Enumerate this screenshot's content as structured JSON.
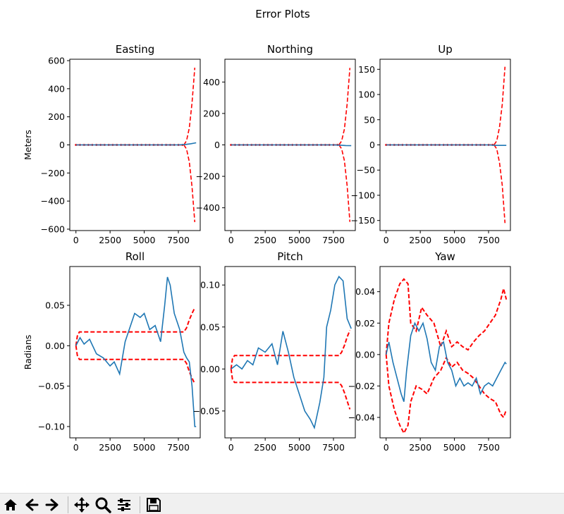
{
  "figure_title": "Error Plots",
  "colors": {
    "estimate": "#1f77b4",
    "bound": "#ff0000",
    "axes": "#000000",
    "toolbar_bg": "#f0f0f0"
  },
  "toolbar": {
    "buttons": [
      {
        "name": "home-icon",
        "label": "Home"
      },
      {
        "name": "back-arrow-icon",
        "label": "Back"
      },
      {
        "name": "forward-arrow-icon",
        "label": "Forward"
      },
      {
        "name": "pan-move-icon",
        "label": "Pan"
      },
      {
        "name": "zoom-magnifier-icon",
        "label": "Zoom"
      },
      {
        "name": "configure-subplots-icon",
        "label": "Subplots"
      },
      {
        "name": "save-floppy-icon",
        "label": "Save"
      }
    ]
  },
  "chart_data": [
    {
      "type": "line",
      "title": "Easting",
      "ylabel": "Meters",
      "xlim": [
        -450,
        9100
      ],
      "ylim": [
        -610,
        610
      ],
      "xticks": [
        0,
        2500,
        5000,
        7500
      ],
      "xtick_labels": [
        "0",
        "2500",
        "5000",
        "7500"
      ],
      "yticks": [
        -600,
        -400,
        -200,
        0,
        200,
        400,
        600
      ],
      "ytick_labels": [
        "−600",
        "−400",
        "−200",
        "0",
        "200",
        "400",
        "600"
      ],
      "estimate": {
        "x": [
          0,
          7500,
          8000,
          8400,
          8800
        ],
        "y": [
          0,
          0,
          3,
          8,
          15
        ]
      },
      "bound_upper": {
        "x": [
          0,
          7900,
          8100,
          8300,
          8500,
          8700
        ],
        "y": [
          0,
          0,
          30,
          120,
          300,
          550
        ]
      },
      "bound_lower": {
        "x": [
          0,
          7900,
          8100,
          8300,
          8500,
          8700
        ],
        "y": [
          0,
          0,
          -30,
          -120,
          -300,
          -550
        ]
      },
      "bound_markers": true
    },
    {
      "type": "line",
      "title": "Northing",
      "ylabel": "",
      "xlim": [
        -450,
        9100
      ],
      "ylim": [
        -545,
        545
      ],
      "xticks": [
        0,
        2500,
        5000,
        7500
      ],
      "xtick_labels": [
        "0",
        "2500",
        "5000",
        "7500"
      ],
      "yticks": [
        -400,
        -200,
        0,
        200,
        400
      ],
      "ytick_labels": [
        "−400",
        "−200",
        "0",
        "200",
        "400"
      ],
      "estimate": {
        "x": [
          0,
          7500,
          8000,
          8400,
          8800
        ],
        "y": [
          0,
          0,
          -2,
          -4,
          -5
        ]
      },
      "bound_upper": {
        "x": [
          0,
          7900,
          8100,
          8300,
          8500,
          8700
        ],
        "y": [
          0,
          0,
          25,
          100,
          260,
          490
        ]
      },
      "bound_lower": {
        "x": [
          0,
          7900,
          8100,
          8300,
          8500,
          8700
        ],
        "y": [
          0,
          0,
          -25,
          -100,
          -260,
          -490
        ]
      },
      "bound_markers": true
    },
    {
      "type": "line",
      "title": "Up",
      "ylabel": "",
      "xlim": [
        -450,
        9100
      ],
      "ylim": [
        -170,
        170
      ],
      "xticks": [
        0,
        2500,
        5000,
        7500
      ],
      "xtick_labels": [
        "0",
        "2500",
        "5000",
        "7500"
      ],
      "yticks": [
        -150,
        -100,
        -50,
        0,
        50,
        100,
        150
      ],
      "ytick_labels": [
        "−150",
        "−100",
        "−50",
        "0",
        "50",
        "100",
        "150"
      ],
      "estimate": {
        "x": [
          0,
          7500,
          8000,
          8400,
          8800
        ],
        "y": [
          0,
          0,
          -1,
          -1,
          -1
        ]
      },
      "bound_upper": {
        "x": [
          0,
          7900,
          8100,
          8300,
          8500,
          8700
        ],
        "y": [
          0,
          0,
          8,
          35,
          80,
          155
        ]
      },
      "bound_lower": {
        "x": [
          0,
          7900,
          8100,
          8300,
          8500,
          8700
        ],
        "y": [
          0,
          0,
          -8,
          -35,
          -80,
          -155
        ]
      },
      "bound_markers": true
    },
    {
      "type": "line",
      "title": "Roll",
      "ylabel": "Radians",
      "xlim": [
        -450,
        9100
      ],
      "ylim": [
        -0.114,
        0.098
      ],
      "xticks": [
        0,
        2500,
        5000,
        7500
      ],
      "xtick_labels": [
        "0",
        "2500",
        "5000",
        "7500"
      ],
      "yticks": [
        -0.1,
        -0.05,
        0.0,
        0.05
      ],
      "ytick_labels": [
        "−0.10",
        "−0.05",
        "0.00",
        "0.05"
      ],
      "estimate": {
        "x": [
          0,
          300,
          600,
          1000,
          1500,
          2000,
          2500,
          2800,
          3200,
          3600,
          3900,
          4300,
          4700,
          5000,
          5400,
          5800,
          6200,
          6500,
          6700,
          6900,
          7200,
          7600,
          7900,
          8100,
          8300,
          8500,
          8700,
          8800
        ],
        "y": [
          0.0,
          0.01,
          0.002,
          0.008,
          -0.01,
          -0.015,
          -0.025,
          -0.02,
          -0.035,
          0.005,
          0.02,
          0.04,
          0.035,
          0.04,
          0.02,
          0.025,
          0.005,
          0.05,
          0.085,
          0.075,
          0.04,
          0.02,
          -0.008,
          -0.015,
          -0.02,
          -0.05,
          -0.1,
          -0.1
        ]
      },
      "bound_upper": {
        "x": [
          0,
          100,
          250,
          7900,
          8100,
          8300,
          8500,
          8700
        ],
        "y": [
          0.0,
          0.012,
          0.017,
          0.017,
          0.022,
          0.032,
          0.04,
          0.047
        ]
      },
      "bound_lower": {
        "x": [
          0,
          100,
          250,
          7900,
          8100,
          8300,
          8500,
          8700
        ],
        "y": [
          0.0,
          -0.012,
          -0.017,
          -0.017,
          -0.022,
          -0.032,
          -0.04,
          -0.047
        ]
      },
      "bound_markers": false
    },
    {
      "type": "line",
      "title": "Pitch",
      "ylabel": "",
      "xlim": [
        -450,
        9100
      ],
      "ylim": [
        -0.082,
        0.122
      ],
      "xticks": [
        0,
        2500,
        5000,
        7500
      ],
      "xtick_labels": [
        "0",
        "2500",
        "5000",
        "7500"
      ],
      "yticks": [
        -0.05,
        0.0,
        0.05,
        0.1
      ],
      "ytick_labels": [
        "−0.05",
        "0.00",
        "0.05",
        "0.10"
      ],
      "estimate": {
        "x": [
          0,
          400,
          800,
          1200,
          1600,
          2000,
          2500,
          3000,
          3400,
          3800,
          4200,
          4600,
          5000,
          5400,
          5800,
          6100,
          6500,
          6800,
          7000,
          7300,
          7600,
          7900,
          8200,
          8500,
          8800
        ],
        "y": [
          0.0,
          0.005,
          0.0,
          0.01,
          0.005,
          0.025,
          0.02,
          0.03,
          0.005,
          0.045,
          0.02,
          -0.01,
          -0.03,
          -0.05,
          -0.06,
          -0.07,
          -0.04,
          -0.01,
          0.05,
          0.07,
          0.1,
          0.11,
          0.105,
          0.06,
          0.048
        ]
      },
      "bound_upper": {
        "x": [
          0,
          100,
          250,
          7900,
          8100,
          8300,
          8500,
          8700
        ],
        "y": [
          0.0,
          0.012,
          0.016,
          0.016,
          0.02,
          0.028,
          0.038,
          0.046
        ]
      },
      "bound_lower": {
        "x": [
          0,
          100,
          250,
          7900,
          8100,
          8300,
          8500,
          8700
        ],
        "y": [
          0.0,
          -0.012,
          -0.016,
          -0.016,
          -0.02,
          -0.028,
          -0.038,
          -0.048
        ]
      },
      "bound_markers": false
    },
    {
      "type": "line",
      "title": "Yaw",
      "ylabel": "",
      "xlim": [
        -450,
        9100
      ],
      "ylim": [
        -0.053,
        0.056
      ],
      "xticks": [
        0,
        2500,
        5000,
        7500
      ],
      "xtick_labels": [
        "0",
        "2500",
        "5000",
        "7500"
      ],
      "yticks": [
        -0.04,
        -0.02,
        0.0,
        0.02,
        0.04
      ],
      "ytick_labels": [
        "−0.04",
        "−0.02",
        "0.00",
        "0.02",
        "0.04"
      ],
      "estimate": {
        "x": [
          0,
          200,
          500,
          800,
          1100,
          1300,
          1500,
          1800,
          2100,
          2400,
          2700,
          3000,
          3300,
          3600,
          3900,
          4200,
          4500,
          4800,
          5100,
          5400,
          5700,
          6000,
          6300,
          6600,
          6900,
          7200,
          7500,
          7800,
          8100,
          8400,
          8700,
          8800
        ],
        "y": [
          0.0,
          0.008,
          -0.005,
          -0.015,
          -0.025,
          -0.03,
          -0.01,
          0.012,
          0.02,
          0.015,
          0.02,
          0.01,
          -0.005,
          -0.01,
          0.005,
          0.008,
          -0.005,
          -0.01,
          -0.02,
          -0.015,
          -0.02,
          -0.018,
          -0.02,
          -0.015,
          -0.025,
          -0.02,
          -0.018,
          -0.02,
          -0.015,
          -0.01,
          -0.005,
          -0.006
        ]
      },
      "bound_upper": {
        "x": [
          0,
          200,
          600,
          1000,
          1300,
          1600,
          1800,
          2200,
          2600,
          3000,
          3500,
          4000,
          4400,
          4800,
          5200,
          5600,
          6000,
          6400,
          6800,
          7200,
          7600,
          8000,
          8400,
          8600,
          8800
        ],
        "y": [
          0.0,
          0.02,
          0.035,
          0.045,
          0.048,
          0.045,
          0.02,
          0.015,
          0.03,
          0.025,
          0.02,
          0.005,
          0.015,
          0.005,
          0.008,
          0.005,
          0.003,
          0.008,
          0.012,
          0.015,
          0.02,
          0.025,
          0.035,
          0.042,
          0.035
        ]
      },
      "bound_lower": {
        "x": [
          0,
          200,
          600,
          1000,
          1300,
          1600,
          1800,
          2200,
          2600,
          3000,
          3500,
          4000,
          4400,
          4800,
          5200,
          5600,
          6000,
          6400,
          6800,
          7200,
          7600,
          8000,
          8400,
          8600,
          8800
        ],
        "y": [
          0.0,
          -0.02,
          -0.035,
          -0.045,
          -0.05,
          -0.045,
          -0.03,
          -0.02,
          -0.022,
          -0.025,
          -0.015,
          -0.01,
          -0.002,
          -0.008,
          -0.005,
          -0.01,
          -0.012,
          -0.015,
          -0.02,
          -0.025,
          -0.028,
          -0.03,
          -0.038,
          -0.04,
          -0.035
        ]
      },
      "bound_markers": false
    }
  ]
}
